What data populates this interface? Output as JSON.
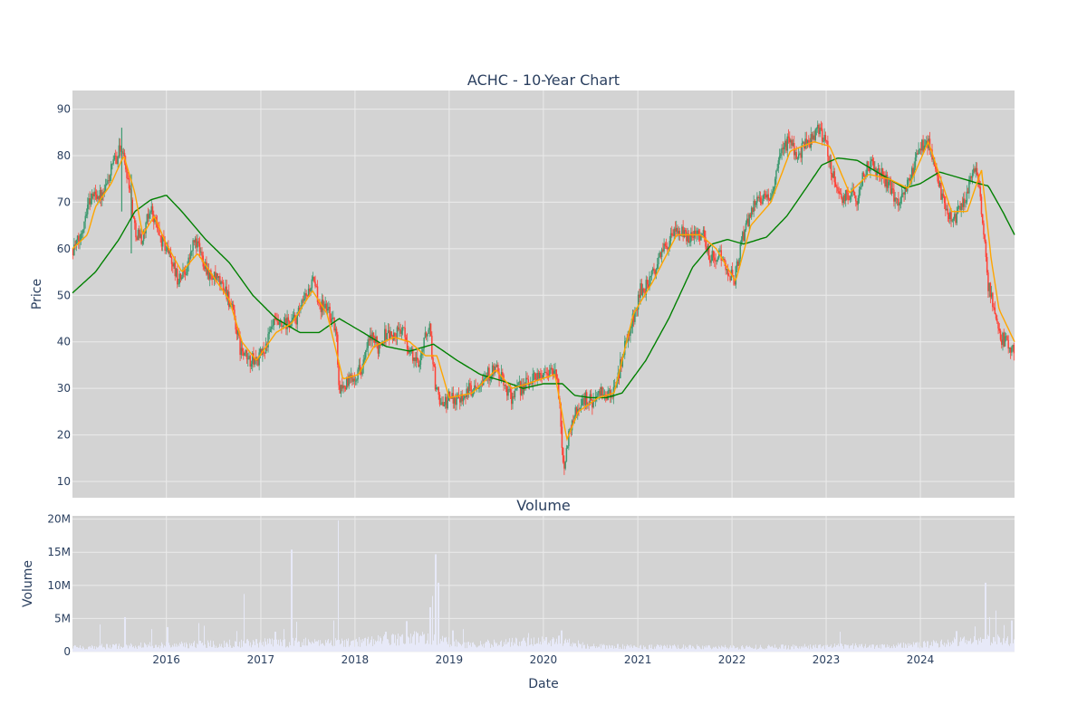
{
  "chart_data": [
    {
      "type": "candlestick",
      "title": "ACHC - 10-Year Chart",
      "xlabel": "",
      "ylabel": "Price",
      "x_range": [
        "2015-01-02",
        "2024-12-31"
      ],
      "ylim": [
        6.5,
        94
      ],
      "yticks": [
        10,
        20,
        30,
        40,
        50,
        60,
        70,
        80,
        90
      ],
      "grid": true,
      "background": "#d3d3d3",
      "colors": {
        "up": "#3d9970",
        "down": "#ff4136",
        "ma_short": "#ffa500",
        "ma_long": "#008000"
      },
      "price_path": [
        [
          "2015-01-02",
          60
        ],
        [
          "2015-02-01",
          62
        ],
        [
          "2015-03-01",
          70
        ],
        [
          "2015-04-01",
          72
        ],
        [
          "2015-05-01",
          71
        ],
        [
          "2015-06-01",
          77
        ],
        [
          "2015-07-10",
          82
        ],
        [
          "2015-08-10",
          74
        ],
        [
          "2015-09-01",
          64
        ],
        [
          "2015-10-01",
          62
        ],
        [
          "2015-11-01",
          69
        ],
        [
          "2015-12-10",
          62
        ],
        [
          "2016-01-15",
          59
        ],
        [
          "2016-02-15",
          53
        ],
        [
          "2016-03-20",
          56
        ],
        [
          "2016-04-20",
          62
        ],
        [
          "2016-05-20",
          58
        ],
        [
          "2016-06-20",
          54
        ],
        [
          "2016-07-20",
          53
        ],
        [
          "2016-08-20",
          51
        ],
        [
          "2016-09-20",
          45
        ],
        [
          "2016-10-15",
          38
        ],
        [
          "2016-11-15",
          36
        ],
        [
          "2016-12-20",
          36
        ],
        [
          "2017-01-20",
          39
        ],
        [
          "2017-02-20",
          44
        ],
        [
          "2017-03-20",
          43
        ],
        [
          "2017-04-20",
          44
        ],
        [
          "2017-05-20",
          45
        ],
        [
          "2017-06-20",
          49
        ],
        [
          "2017-07-20",
          53
        ],
        [
          "2017-08-20",
          48
        ],
        [
          "2017-09-20",
          47
        ],
        [
          "2017-10-20",
          42
        ],
        [
          "2017-11-01",
          30
        ],
        [
          "2017-12-01",
          31
        ],
        [
          "2018-01-01",
          33
        ],
        [
          "2018-02-01",
          35
        ],
        [
          "2018-03-01",
          41
        ],
        [
          "2018-04-01",
          39
        ],
        [
          "2018-05-01",
          42
        ],
        [
          "2018-06-01",
          41
        ],
        [
          "2018-07-01",
          43
        ],
        [
          "2018-08-01",
          38
        ],
        [
          "2018-09-01",
          35
        ],
        [
          "2018-10-15",
          44
        ],
        [
          "2018-11-10",
          30
        ],
        [
          "2018-12-10",
          26
        ],
        [
          "2019-01-01",
          28
        ],
        [
          "2019-02-01",
          28
        ],
        [
          "2019-03-01",
          29
        ],
        [
          "2019-04-01",
          30
        ],
        [
          "2019-05-01",
          32
        ],
        [
          "2019-06-01",
          33
        ],
        [
          "2019-07-01",
          34
        ],
        [
          "2019-08-01",
          31
        ],
        [
          "2019-09-01",
          28
        ],
        [
          "2019-10-01",
          30
        ],
        [
          "2019-11-01",
          31
        ],
        [
          "2019-12-01",
          33
        ],
        [
          "2020-01-01",
          33
        ],
        [
          "2020-02-01",
          34
        ],
        [
          "2020-02-25",
          32
        ],
        [
          "2020-03-20",
          13
        ],
        [
          "2020-04-15",
          22
        ],
        [
          "2020-05-15",
          26
        ],
        [
          "2020-06-15",
          28
        ],
        [
          "2020-07-15",
          27
        ],
        [
          "2020-08-15",
          29
        ],
        [
          "2020-09-15",
          28
        ],
        [
          "2020-10-15",
          32
        ],
        [
          "2020-11-15",
          40
        ],
        [
          "2020-12-15",
          45
        ],
        [
          "2021-01-10",
          51
        ],
        [
          "2021-02-10",
          52
        ],
        [
          "2021-03-10",
          56
        ],
        [
          "2021-04-10",
          60
        ],
        [
          "2021-05-10",
          62
        ],
        [
          "2021-06-10",
          64
        ],
        [
          "2021-07-10",
          62
        ],
        [
          "2021-08-10",
          64
        ],
        [
          "2021-09-10",
          63
        ],
        [
          "2021-10-10",
          58
        ],
        [
          "2021-11-10",
          59
        ],
        [
          "2021-12-10",
          56
        ],
        [
          "2022-01-10",
          53
        ],
        [
          "2022-02-10",
          62
        ],
        [
          "2022-03-10",
          67
        ],
        [
          "2022-04-10",
          72
        ],
        [
          "2022-05-10",
          70
        ],
        [
          "2022-06-10",
          73
        ],
        [
          "2022-07-10",
          80
        ],
        [
          "2022-08-10",
          84
        ],
        [
          "2022-09-10",
          80
        ],
        [
          "2022-10-10",
          82
        ],
        [
          "2022-11-10",
          84
        ],
        [
          "2022-12-01",
          86
        ],
        [
          "2023-01-01",
          82
        ],
        [
          "2023-02-01",
          75
        ],
        [
          "2023-03-01",
          70
        ],
        [
          "2023-04-01",
          72
        ],
        [
          "2023-05-01",
          71
        ],
        [
          "2023-06-01",
          77
        ],
        [
          "2023-07-01",
          78
        ],
        [
          "2023-08-01",
          76
        ],
        [
          "2023-09-01",
          74
        ],
        [
          "2023-10-01",
          70
        ],
        [
          "2023-11-01",
          73
        ],
        [
          "2023-12-01",
          76
        ],
        [
          "2024-01-01",
          82
        ],
        [
          "2024-02-01",
          83
        ],
        [
          "2024-03-01",
          76
        ],
        [
          "2024-04-01",
          70
        ],
        [
          "2024-05-01",
          66
        ],
        [
          "2024-06-01",
          68
        ],
        [
          "2024-07-01",
          72
        ],
        [
          "2024-08-01",
          78
        ],
        [
          "2024-09-01",
          65
        ],
        [
          "2024-09-20",
          52
        ],
        [
          "2024-10-10",
          48
        ],
        [
          "2024-11-01",
          41
        ],
        [
          "2024-12-01",
          40
        ],
        [
          "2024-12-31",
          38
        ]
      ],
      "ma_short": [
        [
          "2015-01-02",
          60
        ],
        [
          "2015-03-01",
          63
        ],
        [
          "2015-04-01",
          69
        ],
        [
          "2015-06-01",
          74
        ],
        [
          "2015-07-20",
          80
        ],
        [
          "2015-09-01",
          72
        ],
        [
          "2015-10-01",
          63
        ],
        [
          "2015-11-15",
          67
        ],
        [
          "2016-01-01",
          61
        ],
        [
          "2016-03-01",
          55
        ],
        [
          "2016-05-01",
          59
        ],
        [
          "2016-07-01",
          54
        ],
        [
          "2016-09-01",
          49
        ],
        [
          "2016-10-20",
          40
        ],
        [
          "2016-12-15",
          36
        ],
        [
          "2017-03-01",
          42
        ],
        [
          "2017-05-01",
          44
        ],
        [
          "2017-07-20",
          51
        ],
        [
          "2017-09-15",
          46
        ],
        [
          "2017-11-15",
          32
        ],
        [
          "2018-01-15",
          33
        ],
        [
          "2018-03-15",
          39
        ],
        [
          "2018-06-01",
          41
        ],
        [
          "2018-08-01",
          40
        ],
        [
          "2018-10-01",
          37
        ],
        [
          "2018-11-15",
          37
        ],
        [
          "2019-01-01",
          28
        ],
        [
          "2019-04-01",
          29
        ],
        [
          "2019-07-01",
          34
        ],
        [
          "2019-09-01",
          30
        ],
        [
          "2019-11-01",
          31
        ],
        [
          "2020-02-15",
          33
        ],
        [
          "2020-04-01",
          19
        ],
        [
          "2020-05-15",
          25
        ],
        [
          "2020-08-01",
          28
        ],
        [
          "2020-10-01",
          29
        ],
        [
          "2020-12-15",
          46
        ],
        [
          "2021-03-01",
          53
        ],
        [
          "2021-06-01",
          63
        ],
        [
          "2021-09-01",
          63
        ],
        [
          "2021-11-01",
          60
        ],
        [
          "2022-01-15",
          53
        ],
        [
          "2022-03-15",
          65
        ],
        [
          "2022-06-01",
          70
        ],
        [
          "2022-08-15",
          81
        ],
        [
          "2022-11-15",
          83
        ],
        [
          "2023-01-15",
          82
        ],
        [
          "2023-04-01",
          72
        ],
        [
          "2023-06-15",
          76
        ],
        [
          "2023-09-01",
          75
        ],
        [
          "2023-11-15",
          73
        ],
        [
          "2024-02-01",
          83
        ],
        [
          "2024-05-01",
          68
        ],
        [
          "2024-07-01",
          68
        ],
        [
          "2024-08-25",
          77
        ],
        [
          "2024-10-01",
          58
        ],
        [
          "2024-11-01",
          47
        ],
        [
          "2024-12-31",
          40
        ]
      ],
      "ma_long": [
        [
          "2015-01-02",
          50.5
        ],
        [
          "2015-04-01",
          55
        ],
        [
          "2015-07-01",
          62
        ],
        [
          "2015-09-01",
          68
        ],
        [
          "2015-11-01",
          70.5
        ],
        [
          "2016-01-01",
          71.5
        ],
        [
          "2016-03-01",
          68
        ],
        [
          "2016-06-01",
          62
        ],
        [
          "2016-09-01",
          57
        ],
        [
          "2016-12-01",
          50
        ],
        [
          "2017-03-01",
          45
        ],
        [
          "2017-06-01",
          42
        ],
        [
          "2017-08-15",
          42
        ],
        [
          "2017-11-01",
          45
        ],
        [
          "2018-02-01",
          42
        ],
        [
          "2018-05-01",
          39
        ],
        [
          "2018-08-01",
          38
        ],
        [
          "2018-11-01",
          39.5
        ],
        [
          "2019-02-01",
          36
        ],
        [
          "2019-05-01",
          33
        ],
        [
          "2019-08-01",
          31.5
        ],
        [
          "2019-10-15",
          30
        ],
        [
          "2020-01-01",
          31
        ],
        [
          "2020-03-15",
          31
        ],
        [
          "2020-05-01",
          28.5
        ],
        [
          "2020-07-01",
          28
        ],
        [
          "2020-09-01",
          28
        ],
        [
          "2020-11-01",
          29
        ],
        [
          "2021-02-01",
          36
        ],
        [
          "2021-05-01",
          45
        ],
        [
          "2021-08-01",
          56
        ],
        [
          "2021-10-15",
          61
        ],
        [
          "2021-12-15",
          62
        ],
        [
          "2022-02-15",
          61
        ],
        [
          "2022-05-15",
          62.5
        ],
        [
          "2022-08-01",
          67
        ],
        [
          "2022-10-15",
          73
        ],
        [
          "2022-12-15",
          78
        ],
        [
          "2023-02-15",
          79.5
        ],
        [
          "2023-05-01",
          79
        ],
        [
          "2023-08-01",
          76
        ],
        [
          "2023-11-01",
          73
        ],
        [
          "2024-01-01",
          74
        ],
        [
          "2024-03-15",
          76.5
        ],
        [
          "2024-06-15",
          75
        ],
        [
          "2024-08-15",
          74
        ],
        [
          "2024-09-20",
          73.5
        ],
        [
          "2024-11-15",
          68
        ],
        [
          "2024-12-31",
          63
        ]
      ]
    },
    {
      "type": "bar",
      "title": "Volume",
      "xlabel": "Date",
      "ylabel": "Volume",
      "x_range": [
        "2015-01-02",
        "2024-12-31"
      ],
      "ylim": [
        0,
        20500000
      ],
      "yticks": [
        0,
        5000000,
        10000000,
        15000000,
        20000000
      ],
      "ytick_labels": [
        "0",
        "5M",
        "10M",
        "15M",
        "20M"
      ],
      "xticks": [
        "2016-01-01",
        "2017-01-01",
        "2018-01-01",
        "2019-01-01",
        "2020-01-01",
        "2021-01-01",
        "2022-01-01",
        "2023-01-01",
        "2024-01-01"
      ],
      "xtick_labels": [
        "2016",
        "2017",
        "2018",
        "2019",
        "2020",
        "2021",
        "2022",
        "2023",
        "2024"
      ],
      "grid": true,
      "background": "#d3d3d3",
      "bar_color": "#e7e9f8",
      "baseline_level": [
        [
          "2015-01-02",
          600000
        ],
        [
          "2016-01-01",
          900000
        ],
        [
          "2017-01-01",
          1200000
        ],
        [
          "2018-01-01",
          1300000
        ],
        [
          "2018-10-01",
          2000000
        ],
        [
          "2019-03-01",
          900000
        ],
        [
          "2020-03-01",
          1600000
        ],
        [
          "2020-07-01",
          700000
        ],
        [
          "2022-01-01",
          600000
        ],
        [
          "2023-01-01",
          700000
        ],
        [
          "2024-01-01",
          900000
        ],
        [
          "2024-09-15",
          1700000
        ],
        [
          "2024-12-31",
          1400000
        ]
      ],
      "spikes": [
        [
          "2015-04-20",
          4100000
        ],
        [
          "2015-07-25",
          5200000
        ],
        [
          "2015-11-05",
          3400000
        ],
        [
          "2016-01-05",
          3700000
        ],
        [
          "2016-05-06",
          4300000
        ],
        [
          "2016-05-27",
          3900000
        ],
        [
          "2016-10-01",
          3100000
        ],
        [
          "2016-10-29",
          8700000
        ],
        [
          "2017-02-27",
          3000000
        ],
        [
          "2017-04-01",
          3400000
        ],
        [
          "2017-04-30",
          15400000
        ],
        [
          "2017-05-19",
          4500000
        ],
        [
          "2017-10-10",
          4700000
        ],
        [
          "2017-10-28",
          19800000
        ],
        [
          "2018-05-01",
          3000000
        ],
        [
          "2018-07-20",
          4600000
        ],
        [
          "2018-09-01",
          2800000
        ],
        [
          "2018-10-20",
          6700000
        ],
        [
          "2018-10-29",
          8400000
        ],
        [
          "2018-11-10",
          14700000
        ],
        [
          "2018-11-20",
          10400000
        ],
        [
          "2019-01-15",
          3200000
        ],
        [
          "2019-02-25",
          3400000
        ],
        [
          "2019-11-05",
          2800000
        ],
        [
          "2020-03-12",
          3200000
        ],
        [
          "2023-02-25",
          3000000
        ],
        [
          "2024-05-20",
          3100000
        ],
        [
          "2024-08-01",
          3800000
        ],
        [
          "2024-09-10",
          10400000
        ],
        [
          "2024-09-25",
          5200000
        ],
        [
          "2024-10-20",
          6200000
        ],
        [
          "2024-11-20",
          4000000
        ],
        [
          "2024-12-20",
          4700000
        ]
      ]
    }
  ]
}
